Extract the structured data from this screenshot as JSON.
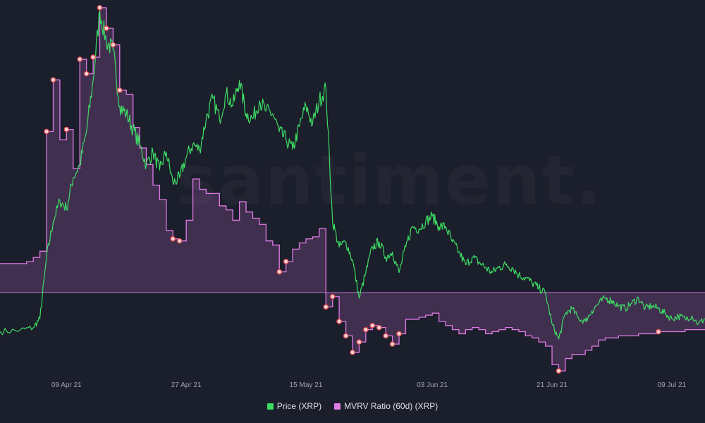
{
  "chart_data": {
    "type": "line",
    "title": "",
    "xlabel": "",
    "ylabel": "",
    "grid": false,
    "legend_placement": "bottom-center",
    "x_range": [
      "2021-03-30",
      "2021-07-14"
    ],
    "x_tick_labels": [
      "09 Apr 21",
      "27 Apr 21",
      "15 May 21",
      "03 Jun 21",
      "21 Jun 21",
      "09 Jul 21"
    ],
    "reference_line": {
      "label": "",
      "value": 1.0,
      "series": "MVRV Ratio (60d) (XRP)"
    },
    "series": [
      {
        "name": "Price (XRP)",
        "color": "#3ddc64",
        "style": "line",
        "axis_range": [
          0.4,
          1.85
        ],
        "points": [
          [
            "2021-03-30",
            0.57
          ],
          [
            "2021-04-02",
            0.575
          ],
          [
            "2021-04-04",
            0.585
          ],
          [
            "2021-04-05",
            0.62
          ],
          [
            "2021-04-06",
            0.86
          ],
          [
            "2021-04-07",
            1.0
          ],
          [
            "2021-04-08",
            1.08
          ],
          [
            "2021-04-09",
            1.05
          ],
          [
            "2021-04-10",
            1.17
          ],
          [
            "2021-04-11",
            1.22
          ],
          [
            "2021-04-12",
            1.35
          ],
          [
            "2021-04-13",
            1.55
          ],
          [
            "2021-04-14",
            1.82
          ],
          [
            "2021-04-15",
            1.7
          ],
          [
            "2021-04-16",
            1.67
          ],
          [
            "2021-04-17",
            1.45
          ],
          [
            "2021-04-18",
            1.42
          ],
          [
            "2021-04-19",
            1.36
          ],
          [
            "2021-04-20",
            1.3
          ],
          [
            "2021-04-21",
            1.22
          ],
          [
            "2021-04-22",
            1.27
          ],
          [
            "2021-04-23",
            1.2
          ],
          [
            "2021-04-24",
            1.27
          ],
          [
            "2021-04-25",
            1.15
          ],
          [
            "2021-04-26",
            1.17
          ],
          [
            "2021-04-27",
            1.25
          ],
          [
            "2021-04-28",
            1.3
          ],
          [
            "2021-04-29",
            1.28
          ],
          [
            "2021-04-30",
            1.4
          ],
          [
            "2021-05-01",
            1.48
          ],
          [
            "2021-05-02",
            1.4
          ],
          [
            "2021-05-03",
            1.5
          ],
          [
            "2021-05-04",
            1.45
          ],
          [
            "2021-05-05",
            1.55
          ],
          [
            "2021-05-06",
            1.42
          ],
          [
            "2021-05-07",
            1.4
          ],
          [
            "2021-05-08",
            1.47
          ],
          [
            "2021-05-09",
            1.43
          ],
          [
            "2021-05-10",
            1.42
          ],
          [
            "2021-05-11",
            1.35
          ],
          [
            "2021-05-12",
            1.32
          ],
          [
            "2021-05-13",
            1.28
          ],
          [
            "2021-05-14",
            1.37
          ],
          [
            "2021-05-15",
            1.45
          ],
          [
            "2021-05-16",
            1.38
          ],
          [
            "2021-05-17",
            1.47
          ],
          [
            "2021-05-18",
            1.52
          ],
          [
            "2021-05-19",
            1.0
          ],
          [
            "2021-05-20",
            0.9
          ],
          [
            "2021-05-21",
            0.92
          ],
          [
            "2021-05-22",
            0.85
          ],
          [
            "2021-05-23",
            0.7
          ],
          [
            "2021-05-24",
            0.8
          ],
          [
            "2021-05-25",
            0.9
          ],
          [
            "2021-05-26",
            0.92
          ],
          [
            "2021-05-27",
            0.86
          ],
          [
            "2021-05-28",
            0.88
          ],
          [
            "2021-05-29",
            0.8
          ],
          [
            "2021-05-30",
            0.9
          ],
          [
            "2021-05-31",
            0.98
          ],
          [
            "2021-06-01",
            0.97
          ],
          [
            "2021-06-02",
            1.0
          ],
          [
            "2021-06-03",
            1.02
          ],
          [
            "2021-06-04",
            0.98
          ],
          [
            "2021-06-05",
            0.98
          ],
          [
            "2021-06-06",
            0.92
          ],
          [
            "2021-06-07",
            0.88
          ],
          [
            "2021-06-08",
            0.83
          ],
          [
            "2021-06-09",
            0.86
          ],
          [
            "2021-06-10",
            0.84
          ],
          [
            "2021-06-11",
            0.82
          ],
          [
            "2021-06-12",
            0.8
          ],
          [
            "2021-06-13",
            0.82
          ],
          [
            "2021-06-14",
            0.83
          ],
          [
            "2021-06-15",
            0.82
          ],
          [
            "2021-06-16",
            0.79
          ],
          [
            "2021-06-17",
            0.78
          ],
          [
            "2021-06-18",
            0.76
          ],
          [
            "2021-06-19",
            0.74
          ],
          [
            "2021-06-20",
            0.72
          ],
          [
            "2021-06-21",
            0.6
          ],
          [
            "2021-06-22",
            0.54
          ],
          [
            "2021-06-23",
            0.64
          ],
          [
            "2021-06-24",
            0.66
          ],
          [
            "2021-06-25",
            0.62
          ],
          [
            "2021-06-26",
            0.61
          ],
          [
            "2021-06-27",
            0.65
          ],
          [
            "2021-06-28",
            0.68
          ],
          [
            "2021-06-29",
            0.7
          ],
          [
            "2021-06-30",
            0.69
          ],
          [
            "2021-07-01",
            0.67
          ],
          [
            "2021-07-02",
            0.66
          ],
          [
            "2021-07-03",
            0.68
          ],
          [
            "2021-07-04",
            0.7
          ],
          [
            "2021-07-05",
            0.66
          ],
          [
            "2021-07-06",
            0.67
          ],
          [
            "2021-07-07",
            0.66
          ],
          [
            "2021-07-08",
            0.64
          ],
          [
            "2021-07-09",
            0.62
          ],
          [
            "2021-07-10",
            0.63
          ],
          [
            "2021-07-11",
            0.62
          ],
          [
            "2021-07-12",
            0.63
          ],
          [
            "2021-07-13",
            0.6
          ],
          [
            "2021-07-14",
            0.62
          ]
        ]
      },
      {
        "name": "MVRV Ratio (60d) (XRP)",
        "color": "#e07be6",
        "style": "step-area",
        "axis_range": [
          0.6,
          2.4
        ],
        "points": [
          [
            "2021-03-30",
            1.14
          ],
          [
            "2021-04-03",
            1.15
          ],
          [
            "2021-04-04",
            1.17
          ],
          [
            "2021-04-05",
            1.2
          ],
          [
            "2021-04-06",
            1.78
          ],
          [
            "2021-04-07",
            2.03
          ],
          [
            "2021-04-08",
            1.74
          ],
          [
            "2021-04-09",
            1.79
          ],
          [
            "2021-04-10",
            1.6
          ],
          [
            "2021-04-11",
            2.13
          ],
          [
            "2021-04-12",
            2.06
          ],
          [
            "2021-04-13",
            2.14
          ],
          [
            "2021-04-14",
            2.38
          ],
          [
            "2021-04-15",
            2.28
          ],
          [
            "2021-04-16",
            2.2
          ],
          [
            "2021-04-17",
            1.98
          ],
          [
            "2021-04-18",
            1.96
          ],
          [
            "2021-04-19",
            1.8
          ],
          [
            "2021-04-20",
            1.7
          ],
          [
            "2021-04-21",
            1.62
          ],
          [
            "2021-04-22",
            1.52
          ],
          [
            "2021-04-23",
            1.45
          ],
          [
            "2021-04-24",
            1.3
          ],
          [
            "2021-04-25",
            1.26
          ],
          [
            "2021-04-26",
            1.25
          ],
          [
            "2021-04-27",
            1.35
          ],
          [
            "2021-04-28",
            1.55
          ],
          [
            "2021-04-29",
            1.5
          ],
          [
            "2021-04-30",
            1.48
          ],
          [
            "2021-05-01",
            1.48
          ],
          [
            "2021-05-02",
            1.42
          ],
          [
            "2021-05-03",
            1.4
          ],
          [
            "2021-05-04",
            1.35
          ],
          [
            "2021-05-05",
            1.44
          ],
          [
            "2021-05-06",
            1.39
          ],
          [
            "2021-05-07",
            1.36
          ],
          [
            "2021-05-08",
            1.33
          ],
          [
            "2021-05-09",
            1.25
          ],
          [
            "2021-05-10",
            1.23
          ],
          [
            "2021-05-11",
            1.1
          ],
          [
            "2021-05-12",
            1.15
          ],
          [
            "2021-05-13",
            1.21
          ],
          [
            "2021-05-14",
            1.24
          ],
          [
            "2021-05-15",
            1.26
          ],
          [
            "2021-05-16",
            1.27
          ],
          [
            "2021-05-17",
            1.31
          ],
          [
            "2021-05-18",
            0.93
          ],
          [
            "2021-05-19",
            0.98
          ],
          [
            "2021-05-20",
            0.86
          ],
          [
            "2021-05-21",
            0.79
          ],
          [
            "2021-05-22",
            0.71
          ],
          [
            "2021-05-23",
            0.76
          ],
          [
            "2021-05-24",
            0.82
          ],
          [
            "2021-05-25",
            0.84
          ],
          [
            "2021-05-26",
            0.83
          ],
          [
            "2021-05-27",
            0.79
          ],
          [
            "2021-05-28",
            0.75
          ],
          [
            "2021-05-29",
            0.8
          ],
          [
            "2021-05-30",
            0.87
          ],
          [
            "2021-05-31",
            0.87
          ],
          [
            "2021-06-01",
            0.88
          ],
          [
            "2021-06-02",
            0.89
          ],
          [
            "2021-06-03",
            0.9
          ],
          [
            "2021-06-04",
            0.86
          ],
          [
            "2021-06-05",
            0.84
          ],
          [
            "2021-06-06",
            0.82
          ],
          [
            "2021-06-07",
            0.8
          ],
          [
            "2021-06-08",
            0.82
          ],
          [
            "2021-06-09",
            0.83
          ],
          [
            "2021-06-10",
            0.82
          ],
          [
            "2021-06-11",
            0.8
          ],
          [
            "2021-06-12",
            0.81
          ],
          [
            "2021-06-13",
            0.82
          ],
          [
            "2021-06-14",
            0.83
          ],
          [
            "2021-06-15",
            0.82
          ],
          [
            "2021-06-16",
            0.81
          ],
          [
            "2021-06-17",
            0.79
          ],
          [
            "2021-06-18",
            0.78
          ],
          [
            "2021-06-19",
            0.76
          ],
          [
            "2021-06-20",
            0.74
          ],
          [
            "2021-06-21",
            0.65
          ],
          [
            "2021-06-22",
            0.62
          ],
          [
            "2021-06-23",
            0.68
          ],
          [
            "2021-06-24",
            0.7
          ],
          [
            "2021-06-25",
            0.7
          ],
          [
            "2021-06-26",
            0.72
          ],
          [
            "2021-06-27",
            0.74
          ],
          [
            "2021-06-28",
            0.77
          ],
          [
            "2021-06-29",
            0.78
          ],
          [
            "2021-06-30",
            0.78
          ],
          [
            "2021-07-01",
            0.79
          ],
          [
            "2021-07-02",
            0.79
          ],
          [
            "2021-07-03",
            0.79
          ],
          [
            "2021-07-04",
            0.8
          ],
          [
            "2021-07-05",
            0.8
          ],
          [
            "2021-07-06",
            0.8
          ],
          [
            "2021-07-07",
            0.81
          ],
          [
            "2021-07-08",
            0.81
          ],
          [
            "2021-07-09",
            0.81
          ],
          [
            "2021-07-10",
            0.81
          ],
          [
            "2021-07-11",
            0.82
          ],
          [
            "2021-07-12",
            0.82
          ],
          [
            "2021-07-13",
            0.82
          ],
          [
            "2021-07-14",
            0.82
          ]
        ],
        "markers": [
          [
            "2021-04-06",
            1.78
          ],
          [
            "2021-04-07",
            2.03
          ],
          [
            "2021-04-09",
            1.79
          ],
          [
            "2021-04-11",
            2.13
          ],
          [
            "2021-04-12",
            2.06
          ],
          [
            "2021-04-13",
            2.14
          ],
          [
            "2021-04-14",
            2.38
          ],
          [
            "2021-04-15",
            2.28
          ],
          [
            "2021-04-16",
            2.2
          ],
          [
            "2021-04-17",
            1.98
          ],
          [
            "2021-04-25",
            1.26
          ],
          [
            "2021-04-26",
            1.25
          ],
          [
            "2021-05-11",
            1.1
          ],
          [
            "2021-05-12",
            1.15
          ],
          [
            "2021-05-18",
            0.93
          ],
          [
            "2021-05-19",
            0.98
          ],
          [
            "2021-05-20",
            0.86
          ],
          [
            "2021-05-21",
            0.79
          ],
          [
            "2021-05-22",
            0.71
          ],
          [
            "2021-05-23",
            0.76
          ],
          [
            "2021-05-24",
            0.82
          ],
          [
            "2021-05-25",
            0.84
          ],
          [
            "2021-05-26",
            0.83
          ],
          [
            "2021-05-27",
            0.79
          ],
          [
            "2021-05-28",
            0.75
          ],
          [
            "2021-05-29",
            0.8
          ],
          [
            "2021-06-22",
            0.62
          ],
          [
            "2021-07-07",
            0.81
          ]
        ]
      }
    ]
  },
  "watermark": "santiment."
}
